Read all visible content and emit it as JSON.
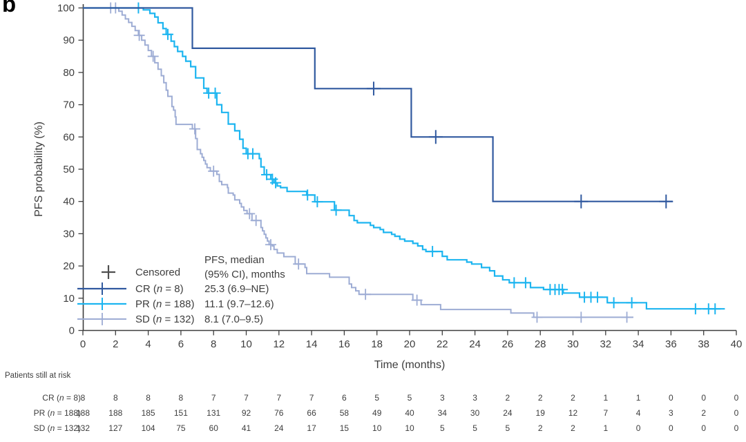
{
  "panel_label": "b",
  "colors": {
    "axis": "#3d3d3d",
    "text": "#3d3d3d",
    "censored_cross": "#4f4f4f",
    "cr": "#30599f",
    "pr": "#1cb5f0",
    "sd": "#9dacd4",
    "background": "#ffffff"
  },
  "chart_data": {
    "type": "line",
    "subtype": "kaplan-meier-step",
    "title": "",
    "xlabel": "Time (months)",
    "ylabel": "PFS probability (%)",
    "xlim": [
      0,
      40
    ],
    "ylim": [
      0,
      100
    ],
    "x_ticks": [
      0,
      2,
      4,
      6,
      8,
      10,
      12,
      14,
      16,
      18,
      20,
      22,
      24,
      26,
      28,
      30,
      32,
      34,
      36,
      38,
      40
    ],
    "y_ticks": [
      0,
      10,
      20,
      30,
      40,
      50,
      60,
      70,
      80,
      90,
      100
    ],
    "grid": false,
    "legend_position": "inside-lower-left",
    "legend": {
      "censored_label": "Censored",
      "median_header_line1": "PFS, median",
      "median_header_line2": "(95% CI), months"
    },
    "series": [
      {
        "name": "CR (n = 8)",
        "short_name": "CR",
        "n": 8,
        "median": "25.3 (6.9–NE)",
        "color": "#30599f",
        "stroke_width": 2.2,
        "censor_size": 10,
        "start_level": 100,
        "drops": [
          [
            6.7,
            87.5
          ],
          [
            14.2,
            75.0
          ],
          [
            20.1,
            60.0
          ],
          [
            25.1,
            40.0
          ]
        ],
        "end": 36.1,
        "censors": [
          [
            17.8,
            75.0
          ],
          [
            21.6,
            60.0
          ],
          [
            30.5,
            40.0
          ],
          [
            35.7,
            40.0
          ]
        ]
      },
      {
        "name": "PR (n = 188)",
        "short_name": "PR",
        "n": 188,
        "median": "11.1 (9.7–12.6)",
        "color": "#1cb5f0",
        "stroke_width": 2.2,
        "censor_size": 8,
        "start_level": 100,
        "drops": [
          [
            3.7,
            99.4
          ],
          [
            4.1,
            98.3
          ],
          [
            4.4,
            97.2
          ],
          [
            4.6,
            95.4
          ],
          [
            4.9,
            93.6
          ],
          [
            5.1,
            91.8
          ],
          [
            5.4,
            89.7
          ],
          [
            5.6,
            88.0
          ],
          [
            5.8,
            86.5
          ],
          [
            6.1,
            85.0
          ],
          [
            6.3,
            83.5
          ],
          [
            6.6,
            81.8
          ],
          [
            6.9,
            78.3
          ],
          [
            7.4,
            75.1
          ],
          [
            7.6,
            73.6
          ],
          [
            8.2,
            70.0
          ],
          [
            8.5,
            67.6
          ],
          [
            8.9,
            64.0
          ],
          [
            9.3,
            61.9
          ],
          [
            9.6,
            59.3
          ],
          [
            9.8,
            56.5
          ],
          [
            10.0,
            54.8
          ],
          [
            10.8,
            53.3
          ],
          [
            10.9,
            50.7
          ],
          [
            11.1,
            48.3
          ],
          [
            11.5,
            46.9
          ],
          [
            11.7,
            45.8
          ],
          [
            11.9,
            44.8
          ],
          [
            12.1,
            44.3
          ],
          [
            12.5,
            43.1
          ],
          [
            13.7,
            42.0
          ],
          [
            14.2,
            39.9
          ],
          [
            15.4,
            37.3
          ],
          [
            16.3,
            35.6
          ],
          [
            16.6,
            34.1
          ],
          [
            16.8,
            33.4
          ],
          [
            17.6,
            32.6
          ],
          [
            17.8,
            31.9
          ],
          [
            18.2,
            31.3
          ],
          [
            18.4,
            30.4
          ],
          [
            18.9,
            29.8
          ],
          [
            19.1,
            29.2
          ],
          [
            19.4,
            28.3
          ],
          [
            19.7,
            27.7
          ],
          [
            20.2,
            27.0
          ],
          [
            20.5,
            26.2
          ],
          [
            20.8,
            25.1
          ],
          [
            21.0,
            24.5
          ],
          [
            22.0,
            23.0
          ],
          [
            22.3,
            21.9
          ],
          [
            23.5,
            21.2
          ],
          [
            23.8,
            20.6
          ],
          [
            24.4,
            19.5
          ],
          [
            24.9,
            18.5
          ],
          [
            25.2,
            16.9
          ],
          [
            25.7,
            15.7
          ],
          [
            26.1,
            14.8
          ],
          [
            27.4,
            13.3
          ],
          [
            28.2,
            12.7
          ],
          [
            29.4,
            11.6
          ],
          [
            30.4,
            10.3
          ],
          [
            32.1,
            8.6
          ],
          [
            34.5,
            6.7
          ]
        ],
        "end": 39.3,
        "censors": [
          [
            3.4,
            100
          ],
          [
            5.2,
            91.8
          ],
          [
            7.7,
            73.6
          ],
          [
            8.1,
            73.6
          ],
          [
            10.1,
            54.8
          ],
          [
            10.4,
            54.8
          ],
          [
            11.25,
            48.3
          ],
          [
            11.6,
            46.9
          ],
          [
            11.8,
            45.8
          ],
          [
            13.75,
            42.0
          ],
          [
            14.35,
            39.9
          ],
          [
            15.5,
            37.3
          ],
          [
            21.4,
            24.5
          ],
          [
            26.4,
            14.8
          ],
          [
            27.1,
            14.8
          ],
          [
            28.6,
            12.7
          ],
          [
            28.9,
            12.7
          ],
          [
            29.15,
            12.7
          ],
          [
            29.35,
            12.7
          ],
          [
            30.7,
            10.3
          ],
          [
            31.1,
            10.3
          ],
          [
            31.5,
            10.3
          ],
          [
            32.5,
            8.6
          ],
          [
            33.6,
            8.6
          ],
          [
            37.5,
            6.7
          ],
          [
            38.3,
            6.7
          ],
          [
            38.7,
            6.7
          ]
        ]
      },
      {
        "name": "SD (n = 132)",
        "short_name": "SD",
        "n": 132,
        "median": "8.1 (7.0–9.5)",
        "color": "#9dacd4",
        "stroke_width": 2.0,
        "censor_size": 8,
        "start_level": 100,
        "drops": [
          [
            2.2,
            99.0
          ],
          [
            2.4,
            97.8
          ],
          [
            2.6,
            96.6
          ],
          [
            2.8,
            95.5
          ],
          [
            3.0,
            94.3
          ],
          [
            3.2,
            93.0
          ],
          [
            3.4,
            91.5
          ],
          [
            3.6,
            90.0
          ],
          [
            3.8,
            88.5
          ],
          [
            4.0,
            86.8
          ],
          [
            4.2,
            85.0
          ],
          [
            4.4,
            83.0
          ],
          [
            4.6,
            81.0
          ],
          [
            4.8,
            79.0
          ],
          [
            4.95,
            76.8
          ],
          [
            5.1,
            74.5
          ],
          [
            5.2,
            72.6
          ],
          [
            5.45,
            69.4
          ],
          [
            5.55,
            68.3
          ],
          [
            5.65,
            66.2
          ],
          [
            5.7,
            63.9
          ],
          [
            6.7,
            62.5
          ],
          [
            6.9,
            59.5
          ],
          [
            7.0,
            56.1
          ],
          [
            7.2,
            54.8
          ],
          [
            7.3,
            53.7
          ],
          [
            7.4,
            52.7
          ],
          [
            7.5,
            51.6
          ],
          [
            7.6,
            50.5
          ],
          [
            7.8,
            49.4
          ],
          [
            8.2,
            48.4
          ],
          [
            8.35,
            46.2
          ],
          [
            8.5,
            45.2
          ],
          [
            8.85,
            44.3
          ],
          [
            8.9,
            42.6
          ],
          [
            9.2,
            42.0
          ],
          [
            9.3,
            40.5
          ],
          [
            9.6,
            39.4
          ],
          [
            9.7,
            38.3
          ],
          [
            9.85,
            37.2
          ],
          [
            10.05,
            36.2
          ],
          [
            10.35,
            34.1
          ],
          [
            10.9,
            31.9
          ],
          [
            11.0,
            30.9
          ],
          [
            11.1,
            29.8
          ],
          [
            11.2,
            28.7
          ],
          [
            11.3,
            27.7
          ],
          [
            11.4,
            26.6
          ],
          [
            11.6,
            26.2
          ],
          [
            11.7,
            25.1
          ],
          [
            11.9,
            24.0
          ],
          [
            12.3,
            22.9
          ],
          [
            13.0,
            20.6
          ],
          [
            13.6,
            19.5
          ],
          [
            13.7,
            17.6
          ],
          [
            15.1,
            16.5
          ],
          [
            16.3,
            14.4
          ],
          [
            16.45,
            13.3
          ],
          [
            16.7,
            12.3
          ],
          [
            16.9,
            11.2
          ],
          [
            20.2,
            9.4
          ],
          [
            20.7,
            8.0
          ],
          [
            21.9,
            6.5
          ],
          [
            26.2,
            5.4
          ],
          [
            27.6,
            4.1
          ]
        ],
        "end": 33.7,
        "censors": [
          [
            1.7,
            100
          ],
          [
            2.0,
            100
          ],
          [
            3.45,
            91.5
          ],
          [
            4.3,
            85.0
          ],
          [
            6.85,
            62.5
          ],
          [
            8.0,
            49.4
          ],
          [
            10.2,
            36.2
          ],
          [
            10.6,
            34.1
          ],
          [
            11.5,
            26.6
          ],
          [
            13.2,
            20.6
          ],
          [
            17.3,
            11.2
          ],
          [
            20.45,
            9.4
          ],
          [
            27.8,
            4.1
          ],
          [
            30.5,
            4.1
          ],
          [
            33.3,
            4.1
          ]
        ]
      }
    ]
  },
  "risk_table": {
    "title": "Patients still at risk",
    "time_points": [
      0,
      2,
      4,
      6,
      8,
      10,
      12,
      14,
      16,
      18,
      20,
      22,
      24,
      26,
      28,
      30,
      32,
      34,
      36,
      38,
      40
    ],
    "rows": [
      {
        "label": "CR (n = 8)",
        "counts": [
          8,
          8,
          8,
          8,
          7,
          7,
          7,
          7,
          6,
          5,
          5,
          3,
          3,
          2,
          2,
          2,
          1,
          1,
          0,
          0,
          0
        ]
      },
      {
        "label": "PR (n = 188)",
        "counts": [
          188,
          188,
          185,
          151,
          131,
          92,
          76,
          66,
          58,
          49,
          40,
          34,
          30,
          24,
          19,
          12,
          7,
          4,
          3,
          2,
          0
        ]
      },
      {
        "label": "SD (n = 132)",
        "counts": [
          132,
          127,
          104,
          75,
          60,
          41,
          24,
          17,
          15,
          10,
          10,
          5,
          5,
          5,
          2,
          2,
          1,
          0,
          0,
          0,
          0
        ]
      }
    ]
  }
}
